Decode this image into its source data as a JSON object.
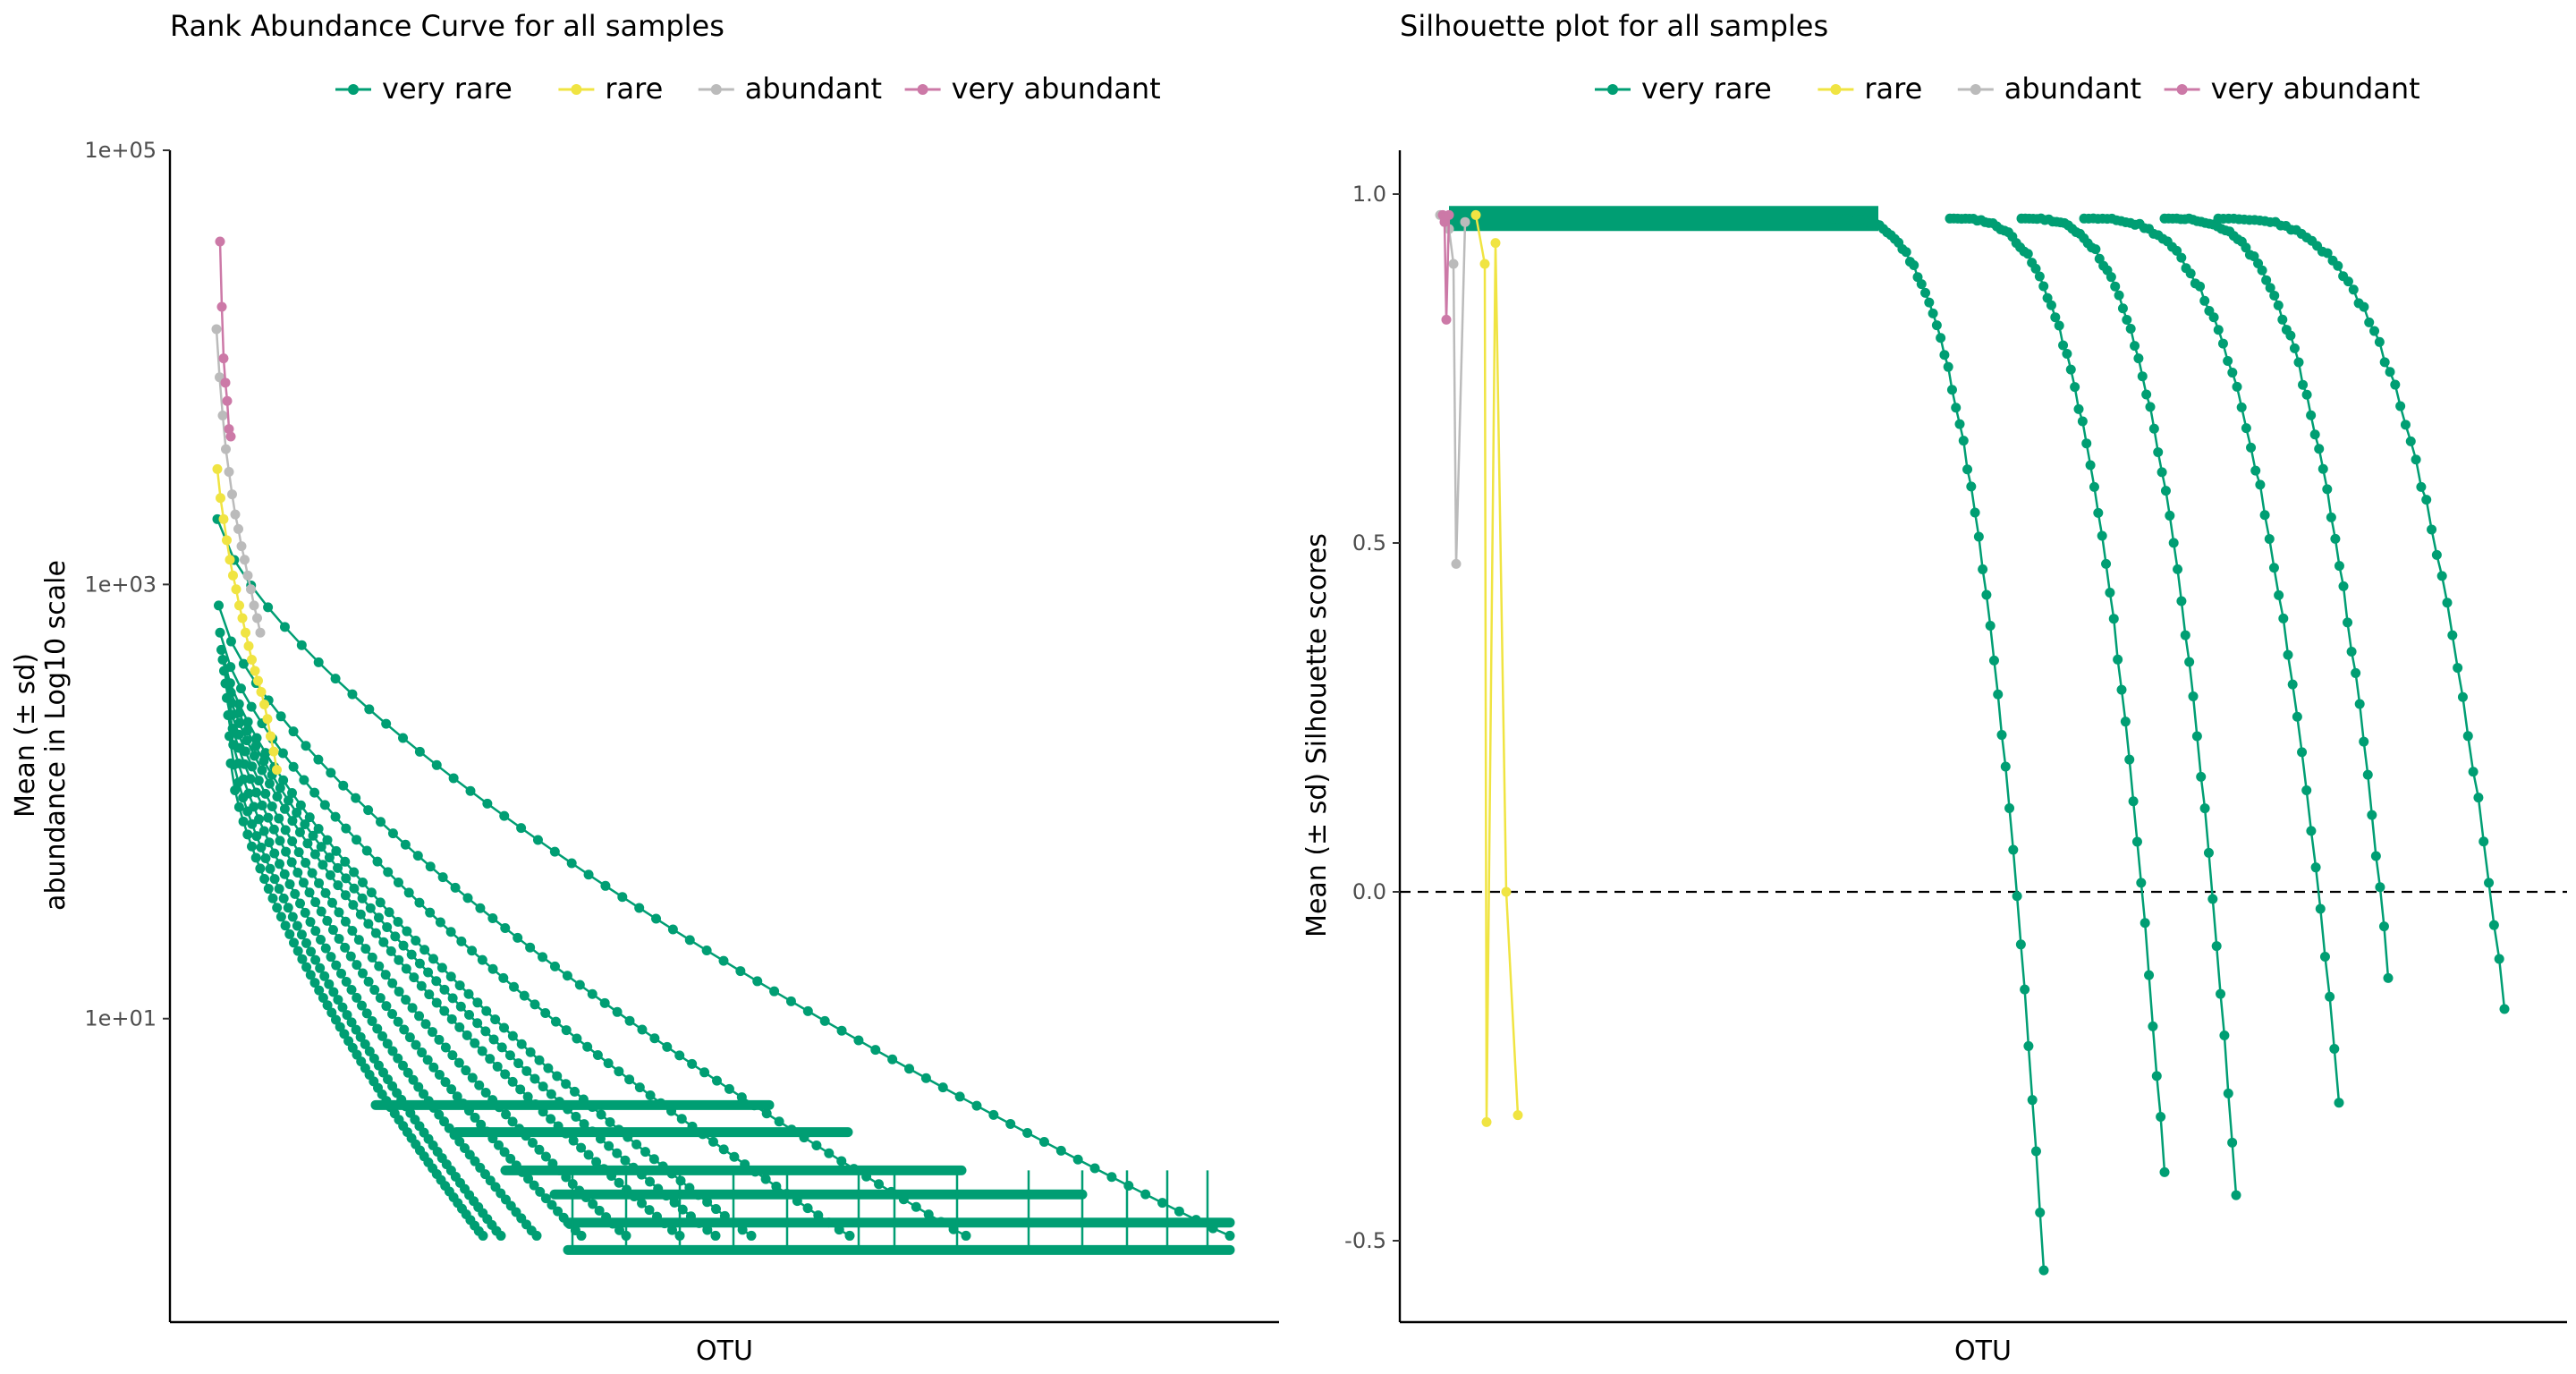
{
  "colors": {
    "very_rare": "#009E73",
    "rare": "#F0E442",
    "abundant": "#BBBBBB",
    "very_abundant": "#CC79A7",
    "axis": "#000000",
    "tick_text": "#4D4D4D"
  },
  "chart_data": [
    {
      "type": "line",
      "title": "Rank Abundance Curve for all samples",
      "xlabel": "OTU",
      "ylabel": [
        "Mean (± sd)",
        "abundance in Log10 scale"
      ],
      "yscale": "log10",
      "ylim": [
        0.4,
        100000
      ],
      "yticks": [
        10,
        1000,
        100000
      ],
      "yticklabels": [
        "1e+01",
        "1e+03",
        "1e+05"
      ],
      "x_tick_labels_shown": false,
      "legend": {
        "position": "top",
        "entries": [
          "very rare",
          "rare",
          "abundant",
          "very abundant"
        ]
      },
      "grid": false,
      "series": [
        {
          "name": "very abundant",
          "x": [
            1,
            2,
            3,
            4,
            5,
            6,
            7
          ],
          "y": [
            38000,
            19000,
            11000,
            8500,
            7000,
            5200,
            4800
          ]
        },
        {
          "name": "abundant",
          "x": [
            1,
            2,
            3,
            4,
            5,
            6,
            7,
            8,
            9,
            10,
            11,
            12,
            13,
            14,
            15
          ],
          "y": [
            15000,
            9000,
            6000,
            4200,
            3300,
            2600,
            2100,
            1800,
            1500,
            1300,
            1100,
            950,
            800,
            700,
            600
          ]
        },
        {
          "name": "rare",
          "x": [
            1,
            2,
            3,
            4,
            5,
            6,
            7,
            8,
            9,
            10,
            11,
            12,
            13,
            14,
            15,
            16,
            17,
            18,
            19,
            20
          ],
          "y": [
            3400,
            2500,
            2000,
            1600,
            1300,
            1100,
            950,
            800,
            700,
            600,
            520,
            450,
            400,
            360,
            320,
            280,
            240,
            200,
            170,
            140
          ]
        },
        {
          "name": "very rare",
          "x": [
            1,
            10,
            20,
            40,
            70,
            110,
            160,
            220,
            280,
            330
          ],
          "y": [
            2000,
            200,
            80,
            30,
            12,
            6,
            3,
            2,
            1,
            1
          ]
        }
      ]
    },
    {
      "type": "line",
      "title": "Silhouette plot for all samples",
      "xlabel": "OTU",
      "ylabel": "Mean (± sd) Silhouette scores",
      "ylim": [
        -0.62,
        1.03
      ],
      "yticks": [
        -0.5,
        0.0,
        0.5,
        1.0
      ],
      "yticklabels": [
        "-0.5",
        "0.0",
        "0.5",
        "1.0"
      ],
      "x_tick_labels_shown": false,
      "reference_line": {
        "y": 0,
        "style": "dashed"
      },
      "legend": {
        "position": "top",
        "entries": [
          "very rare",
          "rare",
          "abundant",
          "very abundant"
        ]
      },
      "grid": false,
      "series": [
        {
          "name": "very abundant",
          "x": [
            1,
            2,
            3,
            4
          ],
          "y": [
            0.97,
            0.96,
            0.82,
            0.97
          ]
        },
        {
          "name": "abundant",
          "x": [
            1,
            2,
            3,
            4,
            5
          ],
          "y": [
            0.97,
            0.95,
            0.9,
            0.47,
            0.96
          ]
        },
        {
          "name": "rare",
          "x": [
            1,
            2,
            3,
            4,
            5,
            6
          ],
          "y": [
            0.97,
            0.9,
            -0.33,
            0.93,
            0.0,
            -0.32
          ]
        },
        {
          "name": "very rare",
          "x": [
            1,
            100,
            200,
            300,
            400,
            500,
            600
          ],
          "y": [
            0.97,
            0.97,
            0.96,
            0.95,
            0.93,
            0.5,
            -0.54
          ]
        }
      ]
    }
  ]
}
